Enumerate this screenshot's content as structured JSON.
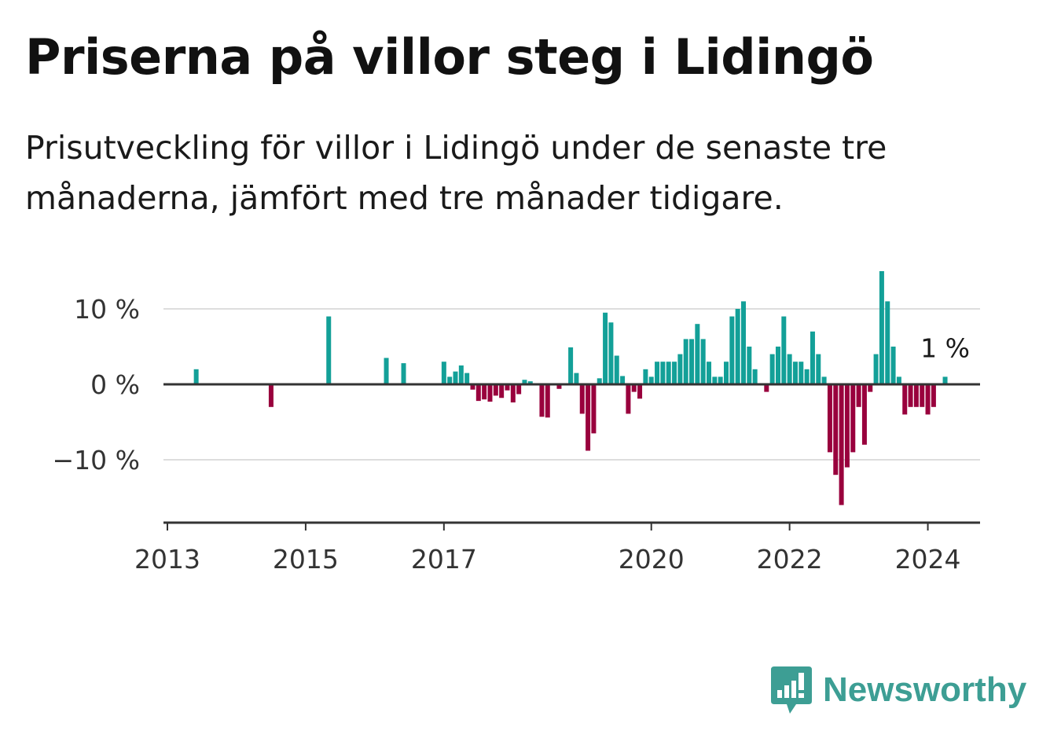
{
  "title": "Priserna på villor steg i Lidingö",
  "subtitle": "Prisutveckling för villor i Lidingö under de senaste tre månaderna, jämfört med tre månader tidigare.",
  "brand": {
    "name": "Newsworthy",
    "icon": "newsworthy-logo-icon",
    "color": "#3d9e94"
  },
  "colors": {
    "positive": "#13a098",
    "negative": "#99003d",
    "grid": "#dddddd",
    "axis": "#333333"
  },
  "chart_data": {
    "type": "bar",
    "x_unit": "month",
    "x_tick_labels": [
      "2013",
      "2015",
      "2017",
      "2020",
      "2022",
      "2024"
    ],
    "y_ticks": [
      10,
      0,
      -10
    ],
    "y_tick_labels": [
      "10 %",
      "0 %",
      "−10 %"
    ],
    "ylim": [
      -18,
      15
    ],
    "grid": true,
    "last_value_label": "1 %",
    "series": [
      {
        "x": "2013-06",
        "y": 2
      },
      {
        "x": "2014-07",
        "y": -3
      },
      {
        "x": "2015-05",
        "y": 9
      },
      {
        "x": "2016-03",
        "y": 3.5
      },
      {
        "x": "2016-06",
        "y": 2.8
      },
      {
        "x": "2017-01",
        "y": 3
      },
      {
        "x": "2017-02",
        "y": 1
      },
      {
        "x": "2017-03",
        "y": 1.7
      },
      {
        "x": "2017-04",
        "y": 2.5
      },
      {
        "x": "2017-05",
        "y": 1.5
      },
      {
        "x": "2017-06",
        "y": -0.7
      },
      {
        "x": "2017-07",
        "y": -2.2
      },
      {
        "x": "2017-08",
        "y": -2
      },
      {
        "x": "2017-09",
        "y": -2.3
      },
      {
        "x": "2017-10",
        "y": -1.5
      },
      {
        "x": "2017-11",
        "y": -1.8
      },
      {
        "x": "2017-12",
        "y": -0.8
      },
      {
        "x": "2018-01",
        "y": -2.4
      },
      {
        "x": "2018-02",
        "y": -1.3
      },
      {
        "x": "2018-03",
        "y": 0.6
      },
      {
        "x": "2018-04",
        "y": 0.4
      },
      {
        "x": "2018-06",
        "y": -4.3
      },
      {
        "x": "2018-07",
        "y": -4.4
      },
      {
        "x": "2018-09",
        "y": -0.6
      },
      {
        "x": "2018-11",
        "y": 4.9
      },
      {
        "x": "2018-12",
        "y": 1.5
      },
      {
        "x": "2019-01",
        "y": -3.9
      },
      {
        "x": "2019-02",
        "y": -8.8
      },
      {
        "x": "2019-03",
        "y": -6.5
      },
      {
        "x": "2019-04",
        "y": 0.8
      },
      {
        "x": "2019-05",
        "y": 9.5
      },
      {
        "x": "2019-06",
        "y": 8.2
      },
      {
        "x": "2019-07",
        "y": 3.8
      },
      {
        "x": "2019-08",
        "y": 1.1
      },
      {
        "x": "2019-09",
        "y": -3.9
      },
      {
        "x": "2019-10",
        "y": -1
      },
      {
        "x": "2019-11",
        "y": -1.9
      },
      {
        "x": "2019-12",
        "y": 2
      },
      {
        "x": "2020-01",
        "y": 1
      },
      {
        "x": "2020-02",
        "y": 3
      },
      {
        "x": "2020-03",
        "y": 3
      },
      {
        "x": "2020-04",
        "y": 3
      },
      {
        "x": "2020-05",
        "y": 3
      },
      {
        "x": "2020-06",
        "y": 4
      },
      {
        "x": "2020-07",
        "y": 6
      },
      {
        "x": "2020-08",
        "y": 6
      },
      {
        "x": "2020-09",
        "y": 8
      },
      {
        "x": "2020-10",
        "y": 6
      },
      {
        "x": "2020-11",
        "y": 3
      },
      {
        "x": "2020-12",
        "y": 1
      },
      {
        "x": "2021-01",
        "y": 1
      },
      {
        "x": "2021-02",
        "y": 3
      },
      {
        "x": "2021-03",
        "y": 9
      },
      {
        "x": "2021-04",
        "y": 10
      },
      {
        "x": "2021-05",
        "y": 11
      },
      {
        "x": "2021-06",
        "y": 5
      },
      {
        "x": "2021-07",
        "y": 2
      },
      {
        "x": "2021-09",
        "y": -1
      },
      {
        "x": "2021-10",
        "y": 4
      },
      {
        "x": "2021-11",
        "y": 5
      },
      {
        "x": "2021-12",
        "y": 9
      },
      {
        "x": "2022-01",
        "y": 4
      },
      {
        "x": "2022-02",
        "y": 3
      },
      {
        "x": "2022-03",
        "y": 3
      },
      {
        "x": "2022-04",
        "y": 2
      },
      {
        "x": "2022-05",
        "y": 7
      },
      {
        "x": "2022-06",
        "y": 4
      },
      {
        "x": "2022-07",
        "y": 1
      },
      {
        "x": "2022-08",
        "y": -9
      },
      {
        "x": "2022-09",
        "y": -12
      },
      {
        "x": "2022-10",
        "y": -16
      },
      {
        "x": "2022-11",
        "y": -11
      },
      {
        "x": "2022-12",
        "y": -9
      },
      {
        "x": "2023-01",
        "y": -3
      },
      {
        "x": "2023-02",
        "y": -8
      },
      {
        "x": "2023-03",
        "y": -1
      },
      {
        "x": "2023-04",
        "y": 4
      },
      {
        "x": "2023-05",
        "y": 15
      },
      {
        "x": "2023-06",
        "y": 11
      },
      {
        "x": "2023-07",
        "y": 5
      },
      {
        "x": "2023-08",
        "y": 1
      },
      {
        "x": "2023-09",
        "y": -4
      },
      {
        "x": "2023-10",
        "y": -3
      },
      {
        "x": "2023-11",
        "y": -3
      },
      {
        "x": "2023-12",
        "y": -3
      },
      {
        "x": "2024-01",
        "y": -4
      },
      {
        "x": "2024-02",
        "y": -3
      },
      {
        "x": "2024-04",
        "y": 1
      }
    ]
  }
}
